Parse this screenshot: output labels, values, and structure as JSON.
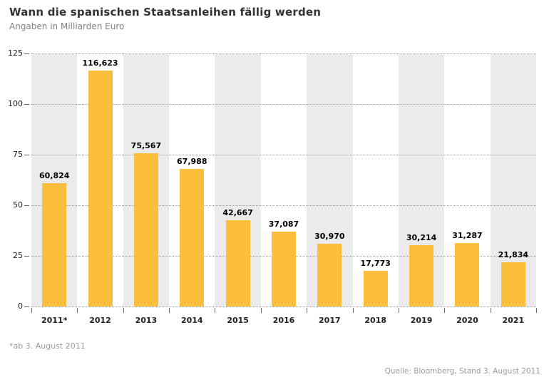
{
  "header": {
    "title": "Wann die spanischen Staatsanleihen fällig werden",
    "subtitle": "Angaben in Milliarden Euro"
  },
  "chart_data": {
    "type": "bar",
    "title": "Wann die spanischen Staatsanleihen fällig werden",
    "subtitle": "Angaben in Milliarden Euro",
    "categories": [
      "2011*",
      "2012",
      "2013",
      "2014",
      "2015",
      "2016",
      "2017",
      "2018",
      "2019",
      "2020",
      "2021"
    ],
    "values": [
      60.824,
      116.623,
      75.567,
      67.988,
      42.667,
      37.087,
      30.97,
      17.773,
      30.214,
      31.287,
      21.834
    ],
    "value_labels": [
      "60,824",
      "116,623",
      "75,567",
      "67,988",
      "42,667",
      "37,087",
      "30,970",
      "17,773",
      "30,214",
      "31,287",
      "21,834"
    ],
    "xlabel": "",
    "ylabel": "",
    "ylim": [
      0,
      125
    ],
    "yticks": [
      0,
      25,
      50,
      75,
      100,
      125
    ],
    "grid": "horizontal-dotted",
    "legend": "none",
    "band_pattern": "alternating-columns"
  },
  "colors": {
    "bar": "#fbbf3d",
    "band": "#ebebeb",
    "grid": "#9d9d9d",
    "tick": "#666666",
    "value_label": "#000000",
    "axis_text": "#222222",
    "title_text": "#333333",
    "muted_text": "#9b9b9b"
  },
  "footnote": "*ab 3. August 2011",
  "source": "Quelle: Bloomberg, Stand 3. August 2011"
}
